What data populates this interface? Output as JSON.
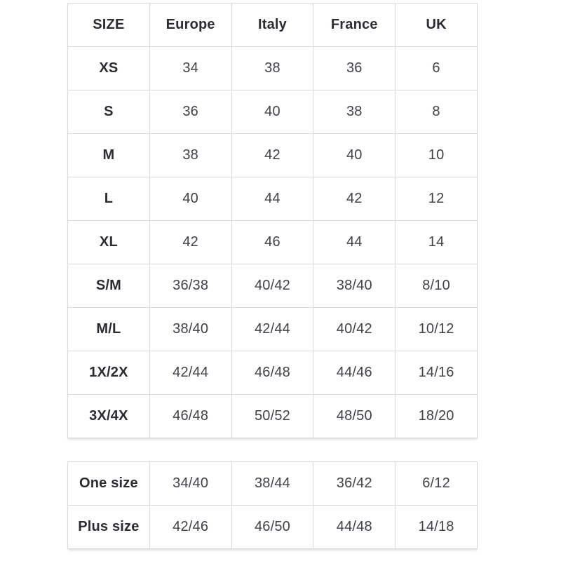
{
  "size_chart": {
    "columns": [
      "SIZE",
      "Europe",
      "Italy",
      "France",
      "UK"
    ],
    "rows": [
      {
        "size": "XS",
        "europe": "34",
        "italy": "38",
        "france": "36",
        "uk": "6"
      },
      {
        "size": "S",
        "europe": "36",
        "italy": "40",
        "france": "38",
        "uk": "8"
      },
      {
        "size": "M",
        "europe": "38",
        "italy": "42",
        "france": "40",
        "uk": "10"
      },
      {
        "size": "L",
        "europe": "40",
        "italy": "44",
        "france": "42",
        "uk": "12"
      },
      {
        "size": "XL",
        "europe": "42",
        "italy": "46",
        "france": "44",
        "uk": "14"
      },
      {
        "size": "S/M",
        "europe": "36/38",
        "italy": "40/42",
        "france": "38/40",
        "uk": "8/10"
      },
      {
        "size": "M/L",
        "europe": "38/40",
        "italy": "42/44",
        "france": "40/42",
        "uk": "10/12"
      },
      {
        "size": "1X/2X",
        "europe": "42/44",
        "italy": "46/48",
        "france": "44/46",
        "uk": "14/16"
      },
      {
        "size": "3X/4X",
        "europe": "46/48",
        "italy": "50/52",
        "france": "48/50",
        "uk": "18/20"
      }
    ],
    "extra_rows": [
      {
        "size": "One size",
        "europe": "34/40",
        "italy": "38/44",
        "france": "36/42",
        "uk": "6/12"
      },
      {
        "size": "Plus size",
        "europe": "42/46",
        "italy": "46/50",
        "france": "44/48",
        "uk": "14/18"
      }
    ],
    "colors": {
      "border": "#d8d8d8",
      "header_text": "#2b2b33",
      "value_text": "#41414b",
      "background": "#ffffff"
    }
  }
}
